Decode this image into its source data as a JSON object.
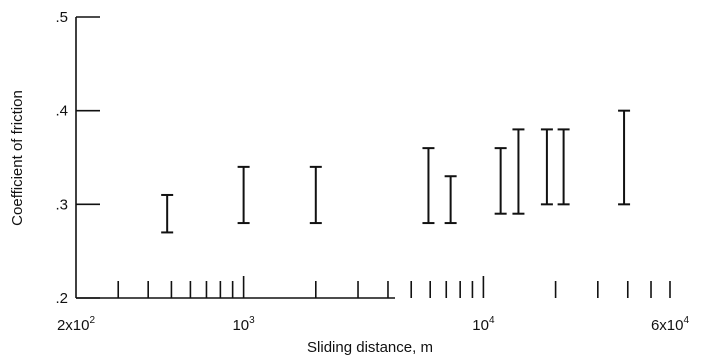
{
  "chart_data": {
    "type": "errorbar",
    "xscale": "log",
    "xlabel": "Sliding distance,  m",
    "ylabel": "Coefficient of friction",
    "xlim": [
      200,
      60000
    ],
    "ylim": [
      0.2,
      0.5
    ],
    "y_ticks": [
      {
        "value": 0.2,
        "label": ".2"
      },
      {
        "value": 0.3,
        "label": ".3"
      },
      {
        "value": 0.4,
        "label": ".4"
      },
      {
        "value": 0.5,
        "label": ".5"
      }
    ],
    "x_tick_labels": [
      {
        "value": 200,
        "base": "2x10",
        "exp": "2"
      },
      {
        "value": 1000,
        "base": "10",
        "exp": "3"
      },
      {
        "value": 10000,
        "base": "10",
        "exp": "4"
      },
      {
        "value": 60000,
        "base": "6x10",
        "exp": "4"
      }
    ],
    "x_minor_ticks": [
      300,
      400,
      500,
      600,
      700,
      800,
      900,
      1000,
      2000,
      3000,
      4000,
      5000,
      6000,
      7000,
      8000,
      9000,
      10000,
      20000,
      30000,
      40000,
      50000,
      60000
    ],
    "points": [
      {
        "x": 480,
        "low": 0.27,
        "high": 0.31
      },
      {
        "x": 1000,
        "low": 0.28,
        "high": 0.34
      },
      {
        "x": 2000,
        "low": 0.28,
        "high": 0.34
      },
      {
        "x": 5900,
        "low": 0.28,
        "high": 0.36
      },
      {
        "x": 7300,
        "low": 0.28,
        "high": 0.33
      },
      {
        "x": 11800,
        "low": 0.29,
        "high": 0.36
      },
      {
        "x": 14000,
        "low": 0.29,
        "high": 0.38
      },
      {
        "x": 18400,
        "low": 0.3,
        "high": 0.38
      },
      {
        "x": 21600,
        "low": 0.3,
        "high": 0.38
      },
      {
        "x": 38600,
        "low": 0.3,
        "high": 0.4
      }
    ]
  }
}
